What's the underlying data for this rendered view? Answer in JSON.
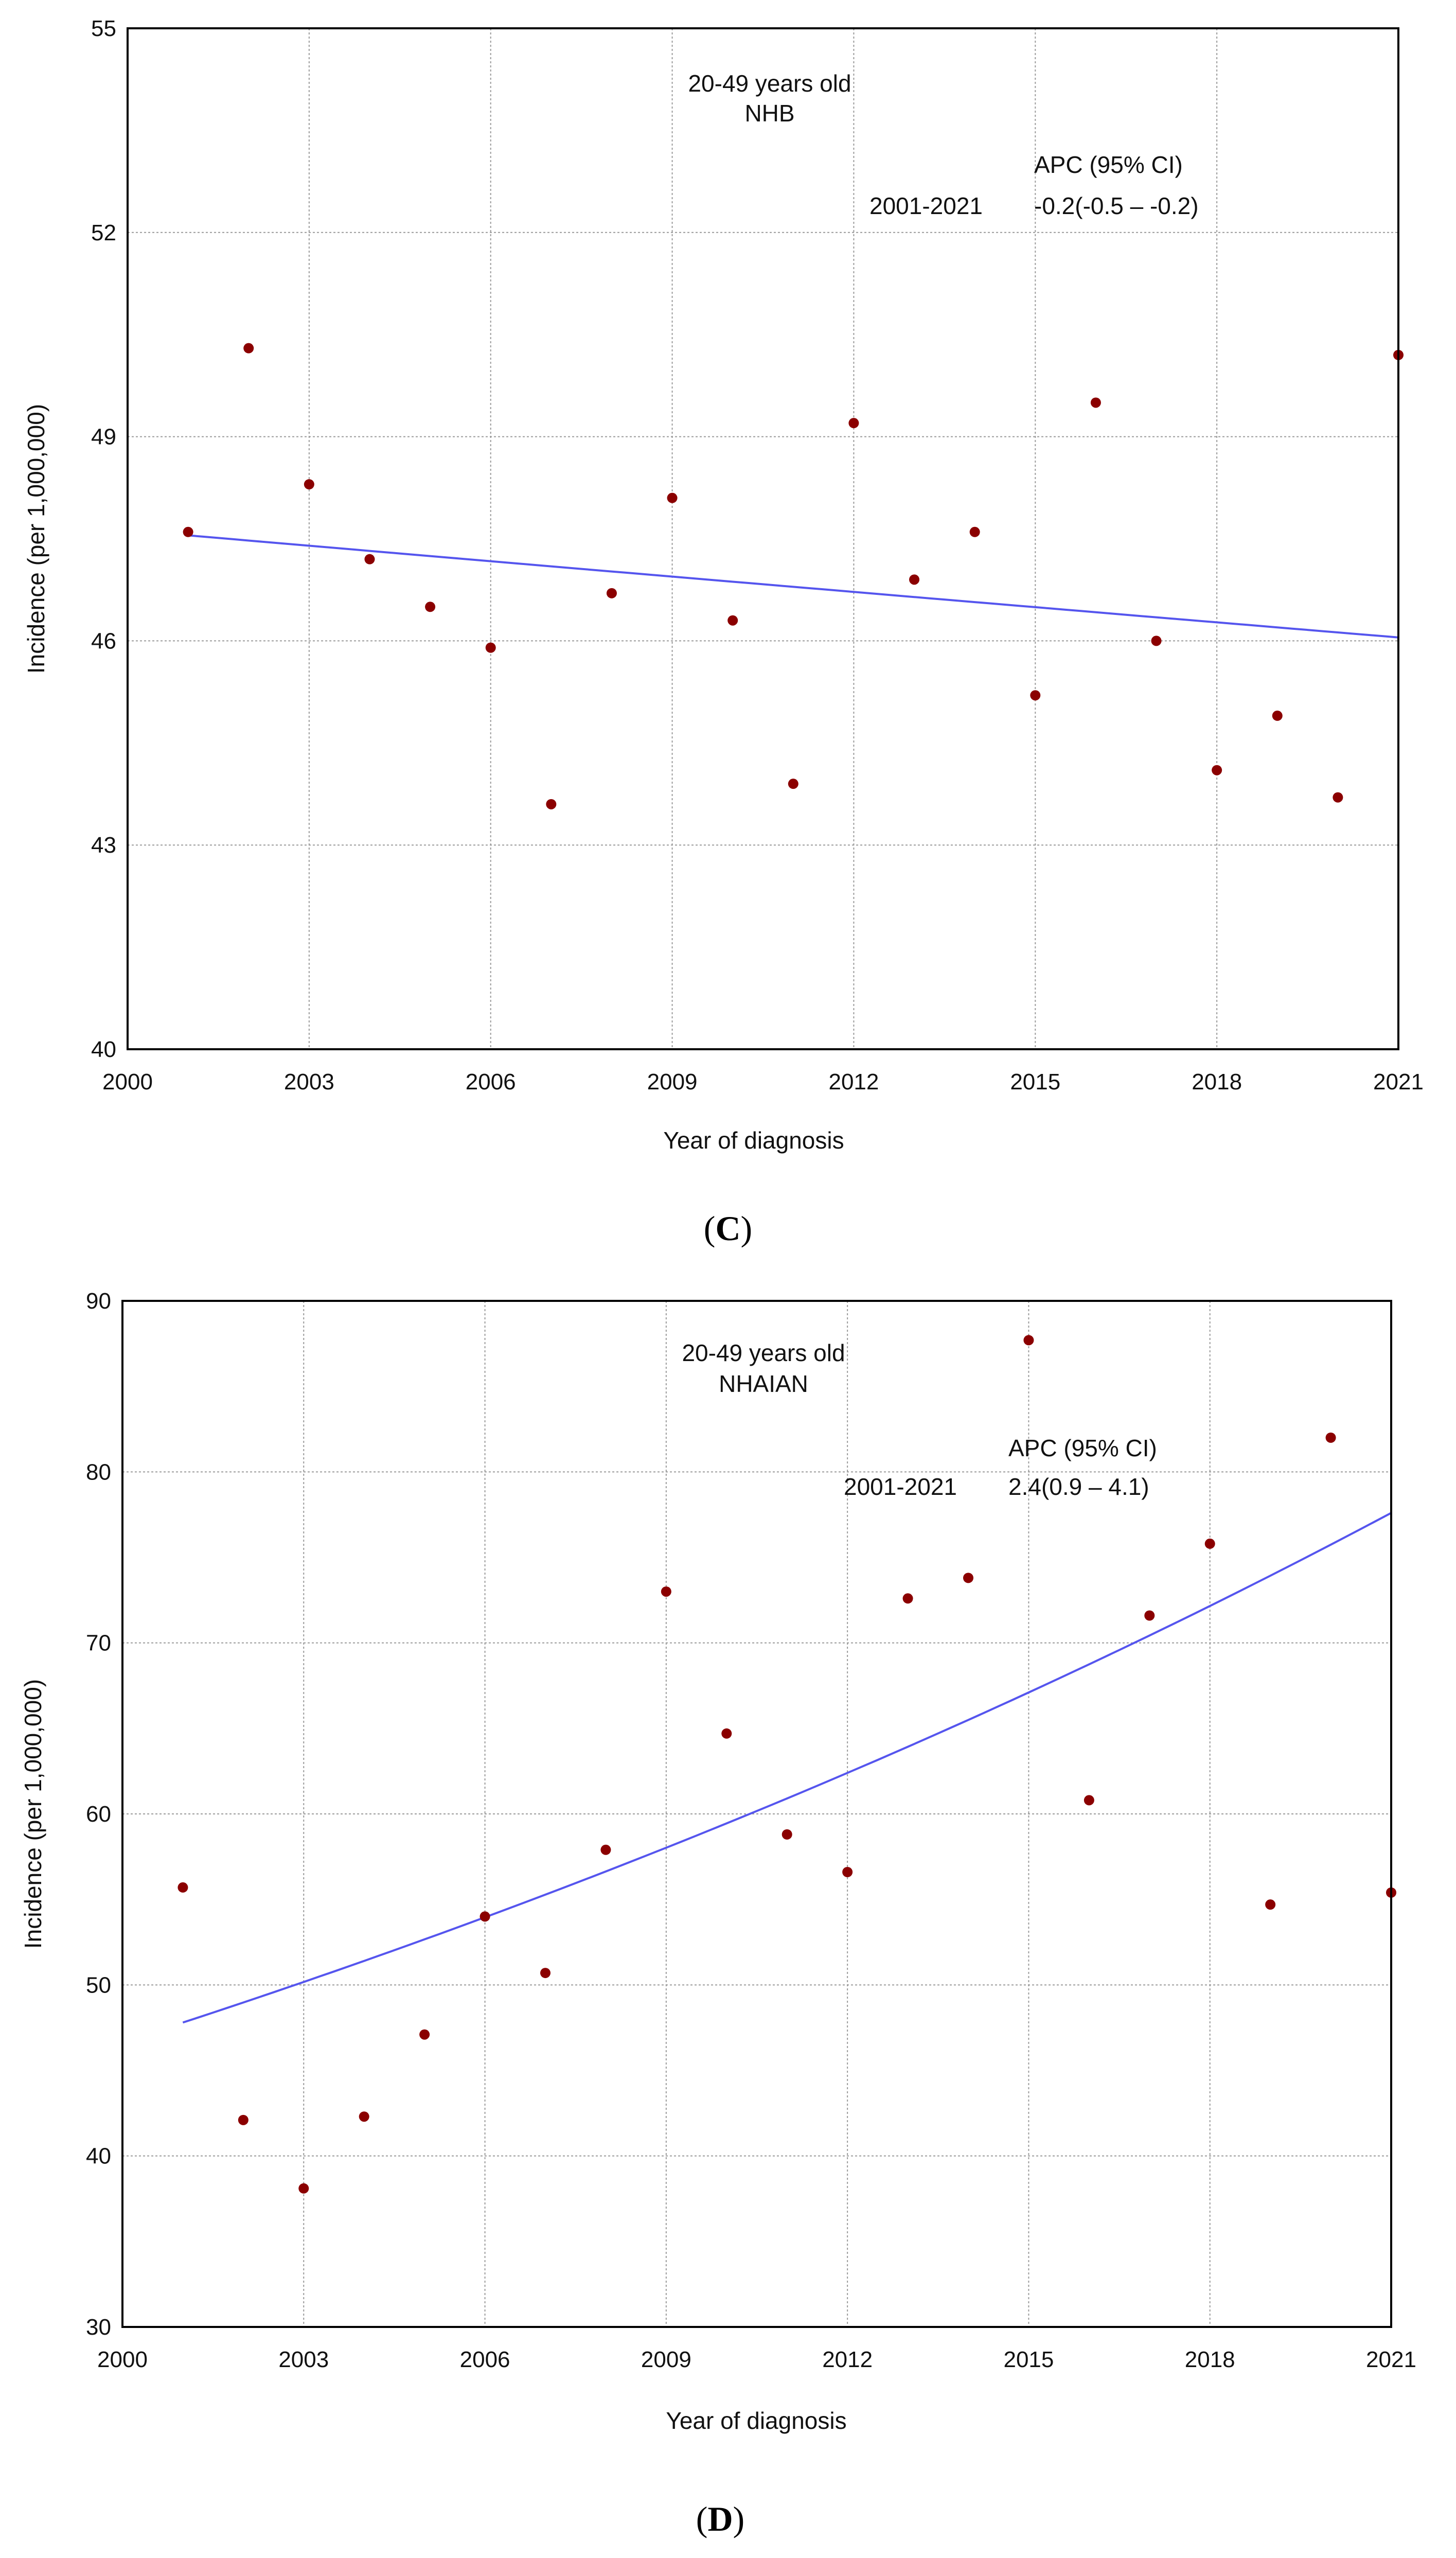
{
  "chart_data": [
    {
      "type": "scatter",
      "panel_label": "(C)",
      "panel_letter": "C",
      "title_line1": "20-49 years old",
      "title_line2": "NHB",
      "apc_header": "APC (95% CI)",
      "apc_period": "2001-2021",
      "apc_value": "-0.2(-0.5 – -0.2)",
      "xlabel": "Year of diagnosis",
      "ylabel": "Incidence (per 1,000,000)",
      "xlim": [
        2000,
        2021
      ],
      "ylim": [
        40,
        55
      ],
      "xticks": [
        2000,
        2003,
        2006,
        2009,
        2012,
        2015,
        2018,
        2021
      ],
      "yticks": [
        40,
        43,
        46,
        49,
        52,
        55
      ],
      "grid": true,
      "point_color": "#8b0000",
      "line_color": "#5555ee",
      "points": {
        "x": [
          2001,
          2002,
          2003,
          2004,
          2005,
          2006,
          2007,
          2008,
          2009,
          2010,
          2011,
          2012,
          2013,
          2014,
          2015,
          2016,
          2017,
          2018,
          2019,
          2020,
          2021
        ],
        "y": [
          47.6,
          50.3,
          48.3,
          47.2,
          46.5,
          45.9,
          43.6,
          46.7,
          48.1,
          46.3,
          43.9,
          49.2,
          46.9,
          47.6,
          45.2,
          49.5,
          46.0,
          44.1,
          44.9,
          43.7,
          50.2
        ]
      },
      "trend": {
        "model": "exponential",
        "x_start": 2001,
        "x_end": 2021,
        "y_start": 47.55,
        "y_end": 46.05
      }
    },
    {
      "type": "scatter",
      "panel_label": "(D)",
      "panel_letter": "D",
      "title_line1": "20-49 years old",
      "title_line2": "NHAIAN",
      "apc_header": "APC (95% CI)",
      "apc_period": "2001-2021",
      "apc_value": "2.4(0.9 – 4.1)",
      "xlabel": "Year of diagnosis",
      "ylabel": "Incidence (per 1,000,000)",
      "xlim": [
        2000,
        2021
      ],
      "ylim": [
        30,
        90
      ],
      "xticks": [
        2000,
        2003,
        2006,
        2009,
        2012,
        2015,
        2018,
        2021
      ],
      "yticks": [
        30,
        40,
        50,
        60,
        70,
        80,
        90
      ],
      "grid": true,
      "point_color": "#8b0000",
      "line_color": "#5555ee",
      "points": {
        "x": [
          2001,
          2002,
          2003,
          2004,
          2005,
          2006,
          2007,
          2008,
          2009,
          2010,
          2011,
          2012,
          2013,
          2014,
          2015,
          2016,
          2017,
          2018,
          2019,
          2020,
          2021
        ],
        "y": [
          55.7,
          42.1,
          38.1,
          42.3,
          47.1,
          54.0,
          50.7,
          57.9,
          73.0,
          64.7,
          58.8,
          56.6,
          72.6,
          73.8,
          87.7,
          60.8,
          71.6,
          75.8,
          54.7,
          82.0,
          55.4
        ]
      },
      "trend": {
        "model": "exponential",
        "x_start": 2001,
        "x_end": 2021,
        "y_start": 47.8,
        "y_end": 77.6
      }
    }
  ]
}
